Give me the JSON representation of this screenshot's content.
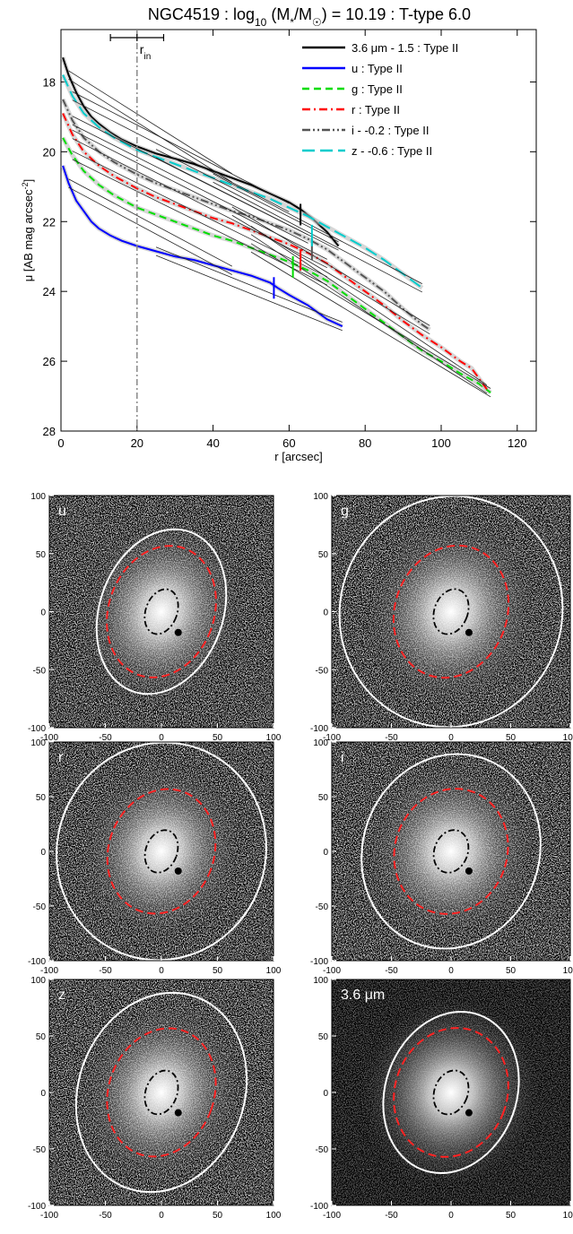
{
  "chart_data": [
    {
      "type": "line",
      "title": "NGC4519 : log10 (M*/M☉) = 10.19 : T-type 6.0",
      "title_parts": {
        "prefix": "NGC4519 : log",
        "sub": "10",
        "mid": " (M",
        "sub2": "*",
        "mid2": "/M",
        "sun": "☉",
        "suffix": ") = 10.19 : T-type 6.0"
      },
      "xlabel": "r [arcsec]",
      "ylabel": "μ [AB mag arcsec⁻²]",
      "ylabel_parts": {
        "main": "μ [AB mag arcsec",
        "sup": "-2",
        "end": "]"
      },
      "xlim": [
        0,
        125
      ],
      "ylim": [
        28,
        16.5
      ],
      "xticks": [
        0,
        20,
        40,
        60,
        80,
        100,
        120
      ],
      "yticks": [
        18,
        20,
        22,
        24,
        26,
        28
      ],
      "rin": {
        "value": 20,
        "label": "r",
        "label_sub": "in",
        "err": [
          13,
          27
        ]
      },
      "legend_position": "top-right",
      "series": [
        {
          "name": "3.6 μm - 1.5 : Type II",
          "color": "#000000",
          "style": "solid",
          "x": [
            0.5,
            2,
            4,
            6,
            8,
            10,
            13,
            16,
            20,
            25,
            30,
            35,
            40,
            45,
            50,
            55,
            60,
            63,
            66,
            70,
            73
          ],
          "y": [
            17.3,
            17.8,
            18.3,
            18.7,
            19.0,
            19.2,
            19.45,
            19.65,
            19.85,
            20.05,
            20.2,
            20.35,
            20.55,
            20.75,
            20.95,
            21.2,
            21.45,
            21.65,
            21.9,
            22.3,
            22.7
          ]
        },
        {
          "name": "u : Type II",
          "color": "#0000ff",
          "style": "solid",
          "x": [
            0.5,
            2,
            4,
            6,
            8,
            10,
            13,
            16,
            20,
            25,
            30,
            35,
            40,
            45,
            50,
            55,
            57,
            60,
            65,
            70,
            74
          ],
          "y": [
            20.4,
            20.9,
            21.4,
            21.7,
            22.0,
            22.2,
            22.4,
            22.55,
            22.7,
            22.85,
            23.0,
            23.1,
            23.25,
            23.4,
            23.55,
            23.75,
            23.9,
            24.1,
            24.4,
            24.8,
            25.0
          ]
        },
        {
          "name": "g : Type II",
          "color": "#00dd00",
          "style": "dashed",
          "x": [
            0.5,
            3,
            6,
            10,
            14,
            20,
            25,
            30,
            35,
            40,
            45,
            50,
            55,
            60,
            65,
            70,
            75,
            80,
            85,
            90,
            95,
            100,
            105,
            110,
            113
          ],
          "y": [
            19.6,
            20.1,
            20.55,
            20.95,
            21.25,
            21.6,
            21.8,
            22.0,
            22.2,
            22.4,
            22.55,
            22.75,
            22.95,
            23.15,
            23.4,
            23.7,
            24.1,
            24.5,
            24.9,
            25.3,
            25.7,
            26.0,
            26.35,
            26.65,
            26.9
          ]
        },
        {
          "name": "r : Type II",
          "color": "#ff0000",
          "style": "dashdot",
          "x": [
            0.5,
            3,
            6,
            10,
            14,
            20,
            25,
            30,
            35,
            40,
            45,
            50,
            55,
            60,
            65,
            70,
            75,
            80,
            85,
            90,
            95,
            100,
            105,
            108,
            112
          ],
          "y": [
            18.9,
            19.5,
            20.0,
            20.4,
            20.7,
            21.05,
            21.3,
            21.5,
            21.7,
            21.9,
            22.05,
            22.25,
            22.45,
            22.65,
            22.9,
            23.2,
            23.6,
            24.0,
            24.4,
            24.85,
            25.25,
            25.6,
            26.0,
            26.2,
            26.8
          ]
        },
        {
          "name": "i - -0.2 : Type II",
          "color": "#555555",
          "style": "dashdotdot",
          "x": [
            0.5,
            3,
            6,
            10,
            14,
            20,
            25,
            30,
            35,
            40,
            45,
            50,
            55,
            60,
            65,
            70,
            75,
            80,
            85,
            90,
            95,
            97
          ],
          "y": [
            18.5,
            19.1,
            19.6,
            20.0,
            20.3,
            20.65,
            20.9,
            21.1,
            21.3,
            21.5,
            21.7,
            21.85,
            22.05,
            22.25,
            22.5,
            22.8,
            23.2,
            23.6,
            24.0,
            24.5,
            24.95,
            25.1
          ]
        },
        {
          "name": "z - -0.6 : Type II",
          "color": "#00cccc",
          "style": "longdash",
          "x": [
            0.5,
            3,
            6,
            10,
            14,
            20,
            25,
            30,
            35,
            40,
            45,
            50,
            55,
            60,
            65,
            70,
            75,
            80,
            85,
            90,
            95
          ],
          "y": [
            17.8,
            18.4,
            18.9,
            19.3,
            19.6,
            19.95,
            20.15,
            20.35,
            20.55,
            20.75,
            20.95,
            21.15,
            21.35,
            21.6,
            21.85,
            22.15,
            22.45,
            22.75,
            23.1,
            23.5,
            23.9
          ]
        }
      ],
      "break_marks": [
        {
          "x": 63,
          "y": 21.8,
          "color": "#000000"
        },
        {
          "x": 56,
          "y": 23.9,
          "color": "#0000ff"
        },
        {
          "x": 61,
          "y": 23.3,
          "color": "#00dd00"
        },
        {
          "x": 63,
          "y": 23.1,
          "color": "#ff0000"
        },
        {
          "x": 66,
          "y": 22.8,
          "color": "#555555"
        },
        {
          "x": 66,
          "y": 22.4,
          "color": "#00cccc"
        }
      ]
    },
    {
      "type": "image-panels",
      "xticks": [
        -100,
        -50,
        0,
        50,
        100
      ],
      "yticks": [
        100,
        50,
        0,
        -50,
        -100
      ],
      "panels": [
        {
          "label": "u",
          "label_main": "u",
          "label_unit": "",
          "outer_rx": 55,
          "outer_ry": 73,
          "inner_rx": 47,
          "inner_ry": 58
        },
        {
          "label": "g",
          "label_main": "g",
          "label_unit": "",
          "outer_rx": 93,
          "outer_ry": 100,
          "inner_rx": 47,
          "inner_ry": 58
        },
        {
          "label": "r",
          "label_main": "r",
          "label_unit": "",
          "outer_rx": 93,
          "outer_ry": 100,
          "inner_rx": 47,
          "inner_ry": 58
        },
        {
          "label": "i",
          "label_main": "i",
          "label_unit": "",
          "outer_rx": 74,
          "outer_ry": 90,
          "inner_rx": 47,
          "inner_ry": 58
        },
        {
          "label": "z",
          "label_main": "z",
          "label_unit": "",
          "outer_rx": 74,
          "outer_ry": 90,
          "inner_rx": 47,
          "inner_ry": 58
        },
        {
          "label": "3.6 μm",
          "label_main": "3.6 ",
          "label_unit": "μm",
          "outer_rx": 55,
          "outer_ry": 73,
          "inner_rx": 47,
          "inner_ry": 58
        }
      ]
    }
  ]
}
